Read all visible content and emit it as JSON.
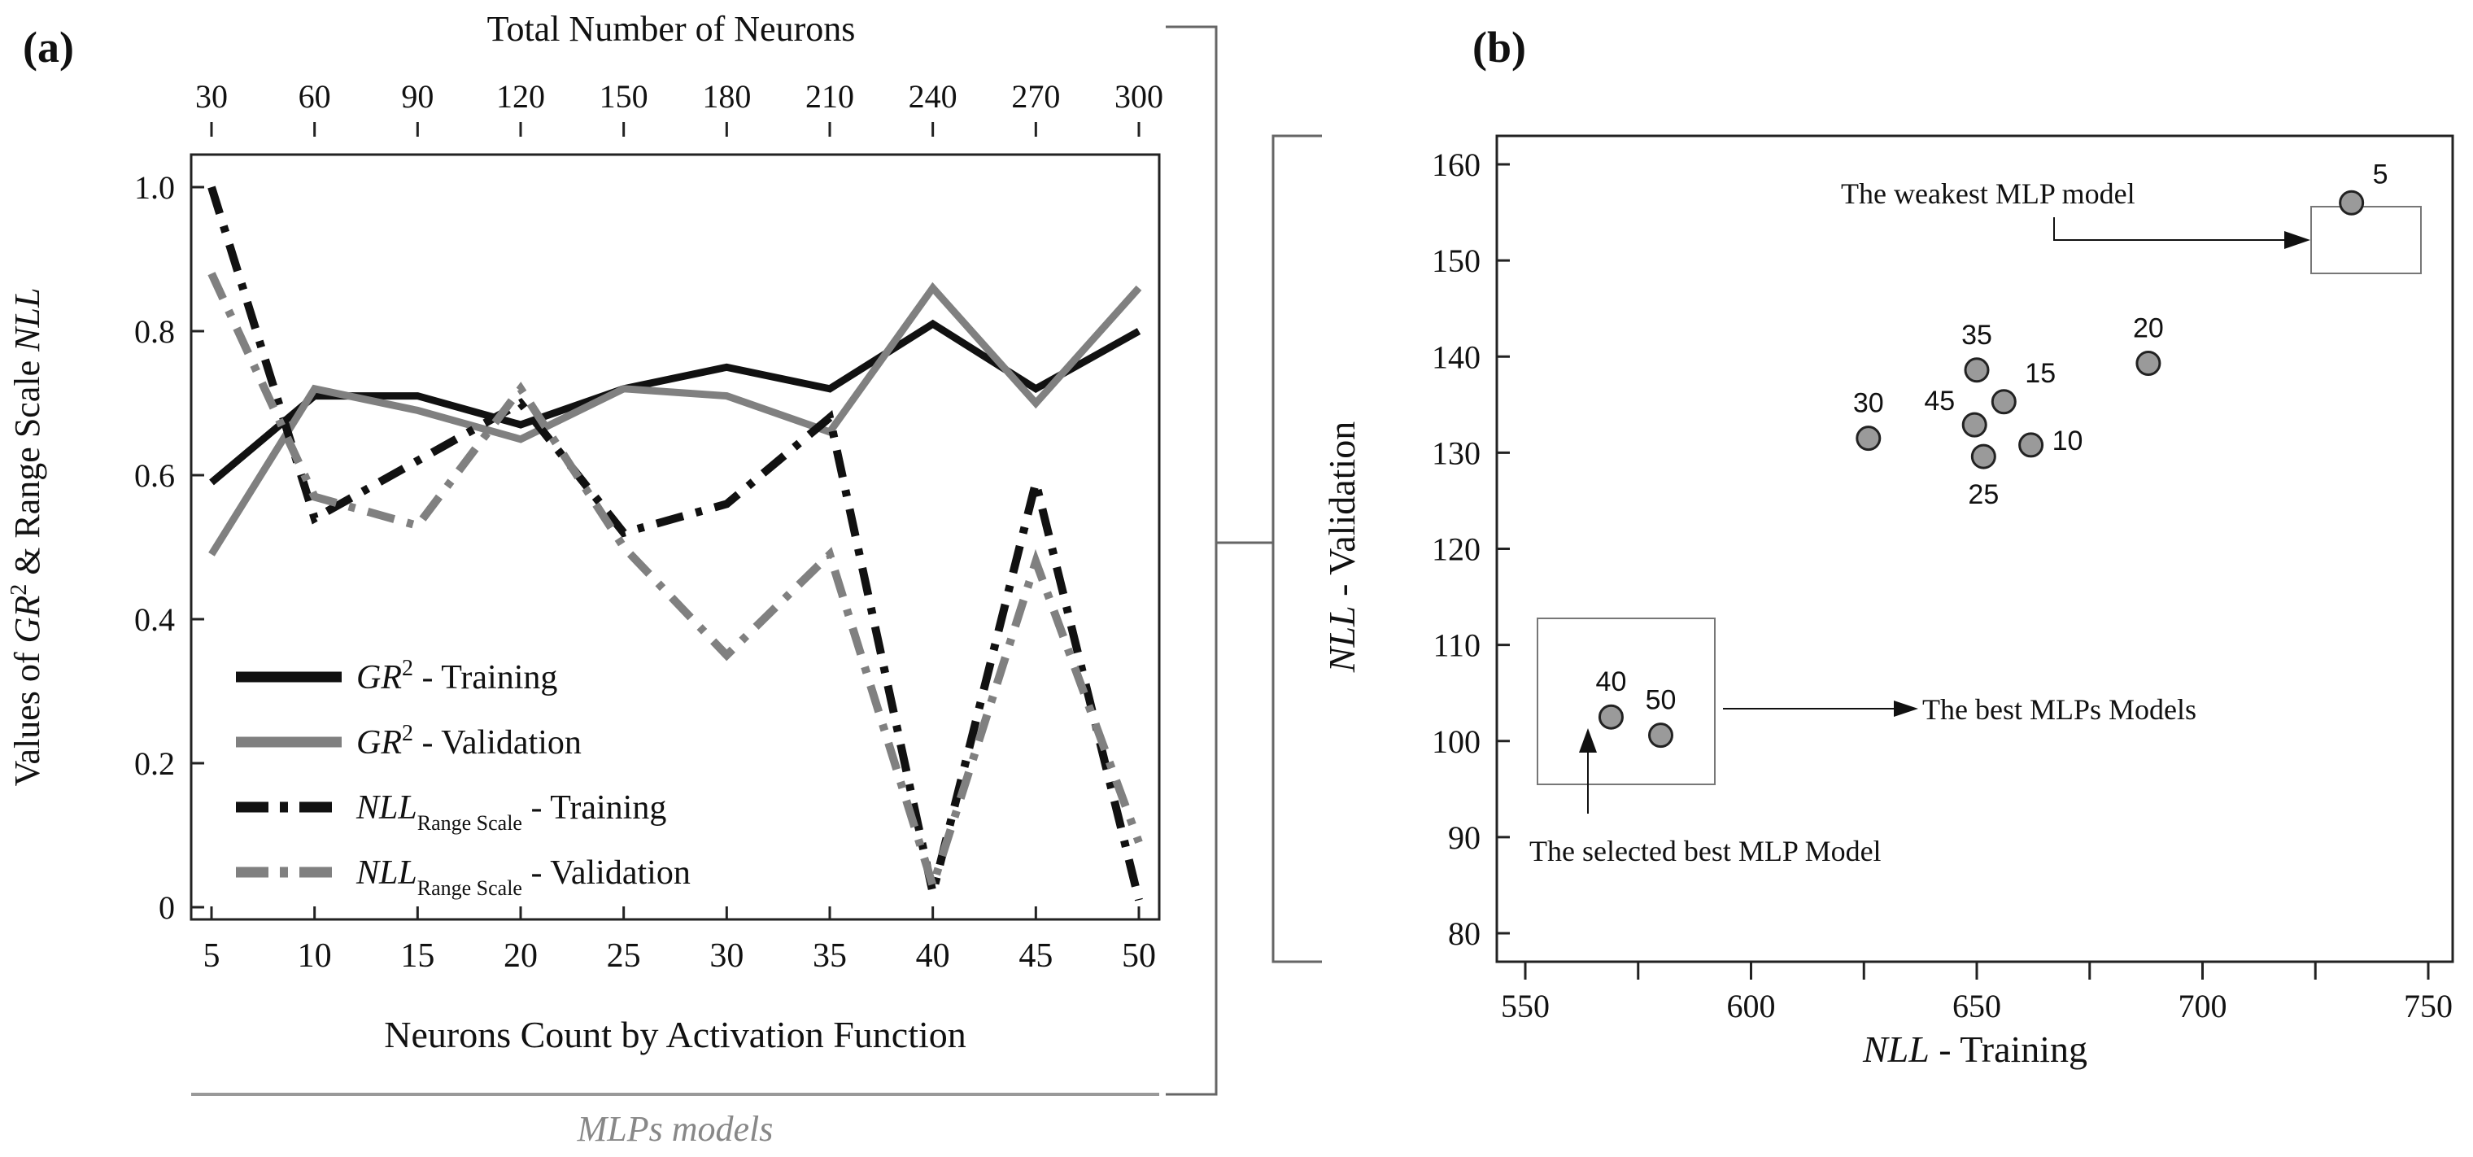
{
  "colors": {
    "dark": "#111111",
    "gray": "#808080",
    "marker_fill": "#9a9a9a",
    "bracket": "#666666",
    "caption": "#8a8a8a"
  },
  "chart_data": [
    {
      "id": "a",
      "panel_label": "(a)",
      "type": "line",
      "title": "",
      "top_axis_label": "Total Number of Neurons",
      "top_ticks": [
        "30",
        "60",
        "90",
        "120",
        "150",
        "180",
        "210",
        "240",
        "270",
        "300"
      ],
      "xlabel": "Neurons Count by Activation Function",
      "ylabel": "Values of GR² & Range Scale NLL",
      "ylabel_parts": {
        "pre": "Values of ",
        "gr": "GR",
        "sup": "2",
        "mid": " & Range Scale ",
        "nll": "NLL"
      },
      "categories": [
        "5",
        "10",
        "15",
        "20",
        "25",
        "30",
        "35",
        "40",
        "45",
        "50"
      ],
      "x": [
        5,
        10,
        15,
        20,
        25,
        30,
        35,
        40,
        45,
        50
      ],
      "xlim": [
        5,
        50
      ],
      "ylim": [
        0,
        1.0
      ],
      "yticks": [
        "0",
        "0.2",
        "0.4",
        "0.6",
        "0.8",
        "1.0"
      ],
      "legend_position": "bottom-left",
      "series": [
        {
          "key": "gr2_train",
          "name": "GR² - Training",
          "legend": {
            "main": "GR",
            "sup": "2",
            "sub": "",
            "suffix": " - Training"
          },
          "color": "dark",
          "style": "solid",
          "values": [
            0.59,
            0.71,
            0.71,
            0.67,
            0.72,
            0.75,
            0.72,
            0.81,
            0.72,
            0.8
          ]
        },
        {
          "key": "gr2_val",
          "name": "GR² - Validation",
          "legend": {
            "main": "GR",
            "sup": "2",
            "sub": "",
            "suffix": " - Validation"
          },
          "color": "gray",
          "style": "solid",
          "values": [
            0.49,
            0.72,
            0.69,
            0.65,
            0.72,
            0.71,
            0.66,
            0.86,
            0.7,
            0.86
          ]
        },
        {
          "key": "nll_train",
          "name": "NLL Range Scale - Training",
          "legend": {
            "main": "NLL",
            "sup": "",
            "sub": "Range Scale",
            "suffix": " - Training"
          },
          "color": "dark",
          "style": "dashdot",
          "values": [
            1.0,
            0.54,
            0.62,
            0.7,
            0.52,
            0.56,
            0.68,
            0.02,
            0.59,
            0.01
          ]
        },
        {
          "key": "nll_val",
          "name": "NLL Range Scale - Validation",
          "legend": {
            "main": "NLL",
            "sup": "",
            "sub": "Range Scale",
            "suffix": " - Validation"
          },
          "color": "gray",
          "style": "dashdot",
          "values": [
            0.88,
            0.57,
            0.53,
            0.72,
            0.5,
            0.35,
            0.49,
            0.03,
            0.48,
            0.09
          ]
        }
      ],
      "caption": "MLPs models"
    },
    {
      "id": "b",
      "panel_label": "(b)",
      "type": "scatter",
      "xlabel": "NLL - Training",
      "xlabel_parts": {
        "nll": "NLL",
        "rest": " - Training"
      },
      "ylabel": "NLL - Validation",
      "ylabel_parts": {
        "nll": "NLL",
        "rest": " - Validation"
      },
      "xlim": [
        550,
        750
      ],
      "ylim": [
        80,
        160
      ],
      "xticks": [
        "550",
        "600",
        "650",
        "700",
        "750"
      ],
      "yticks": [
        "80",
        "90",
        "100",
        "110",
        "120",
        "130",
        "140",
        "150",
        "160"
      ],
      "points": [
        {
          "label": "5",
          "x": 733,
          "y": 156,
          "label_pos": "above-right"
        },
        {
          "label": "20",
          "x": 688,
          "y": 139.3,
          "label_pos": "above"
        },
        {
          "label": "35",
          "x": 650,
          "y": 138.6,
          "label_pos": "above"
        },
        {
          "label": "15",
          "x": 656,
          "y": 135.3,
          "label_pos": "above-right"
        },
        {
          "label": "30",
          "x": 626,
          "y": 131.5,
          "label_pos": "above"
        },
        {
          "label": "45",
          "x": 649.5,
          "y": 132.9,
          "label_pos": "above-left"
        },
        {
          "label": "10",
          "x": 662,
          "y": 130.8,
          "label_pos": "right"
        },
        {
          "label": "25",
          "x": 651.5,
          "y": 129.6,
          "label_pos": "below"
        },
        {
          "label": "40",
          "x": 569,
          "y": 102.5,
          "label_pos": "above"
        },
        {
          "label": "50",
          "x": 580,
          "y": 100.6,
          "label_pos": "above"
        }
      ],
      "annotations": {
        "weakest": "The weakest MLP model",
        "best": "The best MLPs Models",
        "selected": "The selected best MLP Model"
      }
    }
  ]
}
